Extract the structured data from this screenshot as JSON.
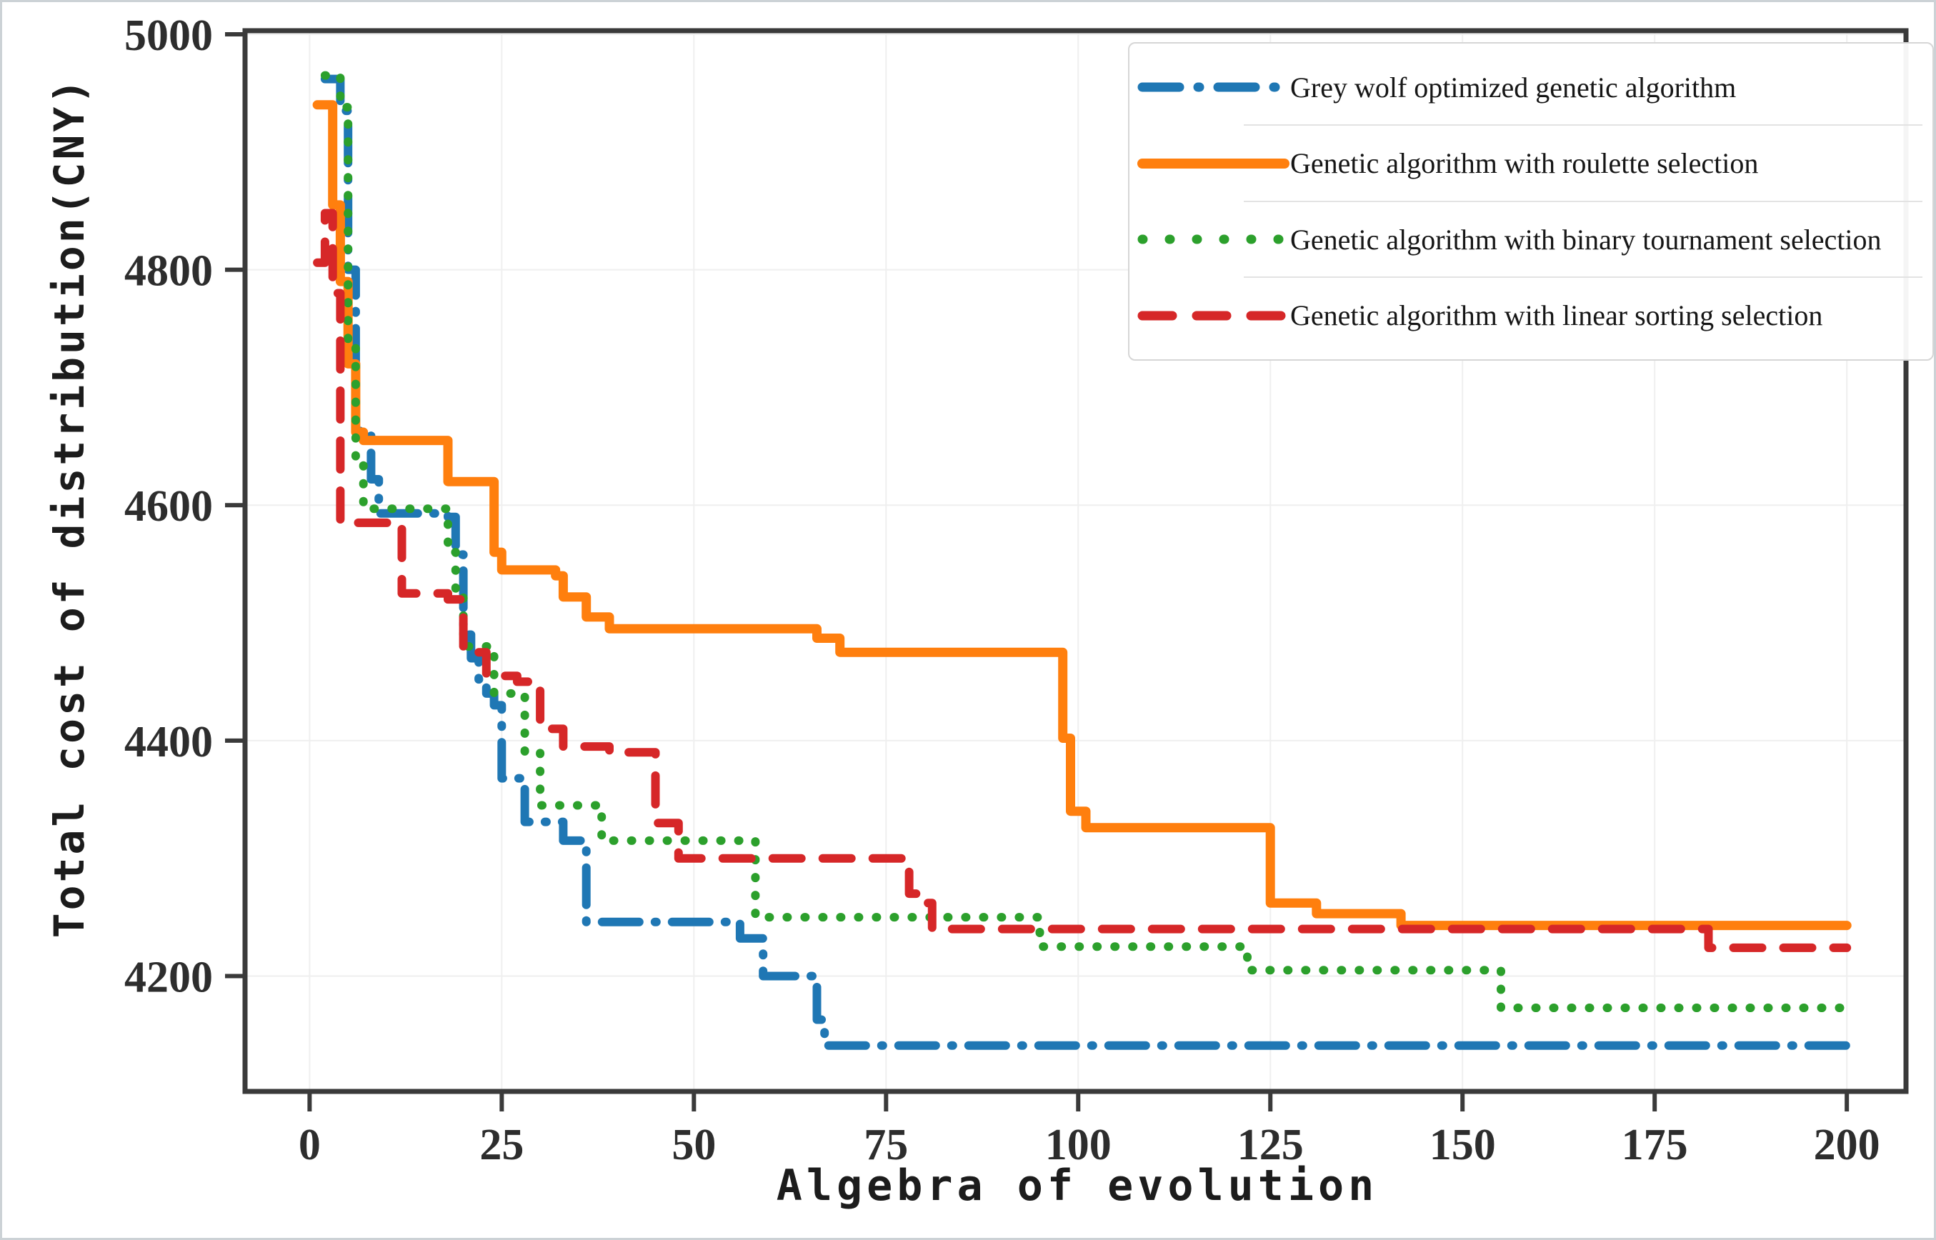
{
  "figure": {
    "background": "#ffffff",
    "border_color": "#ccd2d6"
  },
  "chart_data": {
    "type": "line",
    "title": "",
    "xlabel": "Algebra of evolution",
    "ylabel": "Total cost of distribution(CNY)",
    "xlim": [
      -8.4,
      207.7
    ],
    "ylim": [
      4102,
      5003
    ],
    "x_ticks": [
      0,
      25,
      50,
      75,
      100,
      125,
      150,
      175,
      200
    ],
    "y_ticks": [
      4200,
      4400,
      4600,
      4800,
      5000
    ],
    "grid": true,
    "grid_color": "#efefef",
    "axis_color": "#3a3a3a",
    "tick_label_color": "#2d2d2d",
    "legend_position": "upper right",
    "series": [
      {
        "name": "Grey wolf optimized genetic algorithm",
        "color": "#1f77b4",
        "style": "dashdot",
        "line_width": 12,
        "points": [
          [
            2,
            4962
          ],
          [
            4,
            4935
          ],
          [
            5,
            4800
          ],
          [
            6,
            4663
          ],
          [
            8,
            4622
          ],
          [
            9,
            4593
          ],
          [
            18,
            4590
          ],
          [
            19,
            4558
          ],
          [
            20,
            4490
          ],
          [
            21,
            4470
          ],
          [
            22,
            4452
          ],
          [
            23,
            4440
          ],
          [
            24,
            4430
          ],
          [
            25,
            4368
          ],
          [
            28,
            4331
          ],
          [
            33,
            4315
          ],
          [
            36,
            4246
          ],
          [
            56,
            4232
          ],
          [
            59,
            4200
          ],
          [
            66,
            4163
          ],
          [
            67,
            4141
          ],
          [
            200,
            4141
          ]
        ]
      },
      {
        "name": "Genetic algorithm with roulette selection",
        "color": "#ff7f0e",
        "style": "solid",
        "line_width": 13,
        "points": [
          [
            1,
            4940
          ],
          [
            3,
            4855
          ],
          [
            4,
            4790
          ],
          [
            5,
            4720
          ],
          [
            6,
            4662
          ],
          [
            7,
            4655
          ],
          [
            18,
            4620
          ],
          [
            24,
            4560
          ],
          [
            25,
            4545
          ],
          [
            32,
            4540
          ],
          [
            33,
            4522
          ],
          [
            36,
            4505
          ],
          [
            39,
            4495
          ],
          [
            66,
            4487
          ],
          [
            69,
            4475
          ],
          [
            98,
            4402
          ],
          [
            99,
            4340
          ],
          [
            101,
            4326
          ],
          [
            125,
            4262
          ],
          [
            131,
            4253
          ],
          [
            142,
            4243
          ],
          [
            200,
            4243
          ]
        ]
      },
      {
        "name": "Genetic algorithm with binary tournament selection",
        "color": "#2ca02c",
        "style": "dotted",
        "line_width": 12,
        "points": [
          [
            2,
            4965
          ],
          [
            4,
            4938
          ],
          [
            5,
            4740
          ],
          [
            6,
            4640
          ],
          [
            7,
            4597
          ],
          [
            18,
            4560
          ],
          [
            19,
            4525
          ],
          [
            20,
            4480
          ],
          [
            24,
            4440
          ],
          [
            28,
            4390
          ],
          [
            30,
            4345
          ],
          [
            38,
            4315
          ],
          [
            58,
            4250
          ],
          [
            95,
            4225
          ],
          [
            122,
            4205
          ],
          [
            155,
            4173
          ],
          [
            200,
            4173
          ]
        ]
      },
      {
        "name": "Genetic algorithm with linear sorting selection",
        "color": "#d62728",
        "style": "dashed",
        "line_width": 12,
        "points": [
          [
            1,
            4806
          ],
          [
            2,
            4848
          ],
          [
            3,
            4780
          ],
          [
            4,
            4585
          ],
          [
            12,
            4525
          ],
          [
            18,
            4520
          ],
          [
            20,
            4475
          ],
          [
            23,
            4455
          ],
          [
            27,
            4450
          ],
          [
            30,
            4410
          ],
          [
            33,
            4395
          ],
          [
            39,
            4390
          ],
          [
            45,
            4330
          ],
          [
            48,
            4300
          ],
          [
            77,
            4290
          ],
          [
            78,
            4270
          ],
          [
            80,
            4262
          ],
          [
            81,
            4240
          ],
          [
            182,
            4224
          ],
          [
            200,
            4224
          ]
        ]
      }
    ]
  }
}
